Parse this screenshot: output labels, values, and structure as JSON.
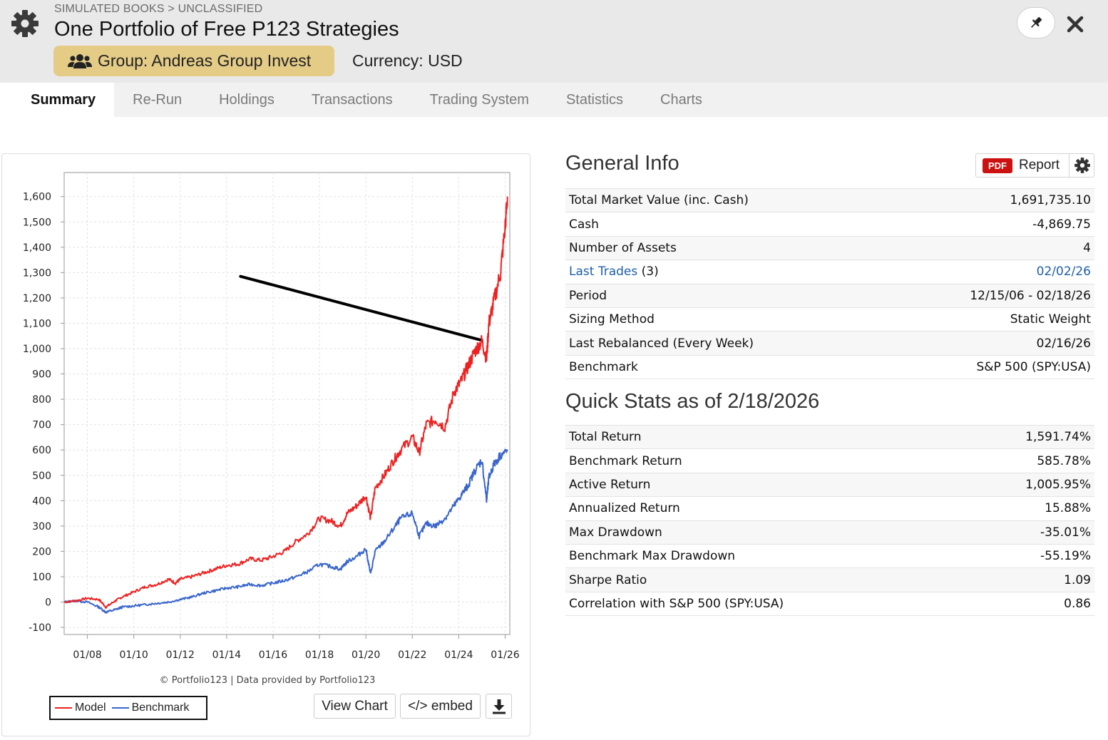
{
  "header": {
    "breadcrumb": "SIMULATED BOOKS > UNCLASSIFIED",
    "title": "One Portfolio of Free P123 Strategies",
    "group": "Group: Andreas Group Invest",
    "currency": "Currency: USD"
  },
  "tabs": [
    {
      "label": "Summary",
      "active": true
    },
    {
      "label": "Re-Run"
    },
    {
      "label": "Holdings"
    },
    {
      "label": "Transactions"
    },
    {
      "label": "Trading System"
    },
    {
      "label": "Statistics"
    },
    {
      "label": "Charts"
    }
  ],
  "chart": {
    "credit": "© Portfolio123 | Data provided by Portfolio123",
    "legend_model": "Model",
    "legend_benchmark": "Benchmark",
    "view_chart": "View Chart",
    "embed": "</> embed",
    "colors": {
      "model": "#ee2222",
      "benchmark": "#3a66cc"
    }
  },
  "chart_data": {
    "type": "line",
    "title": "",
    "xlabel": "",
    "ylabel": "",
    "ylim": [
      -100,
      1650
    ],
    "xlim": [
      2007.0,
      2026.2
    ],
    "yticks": [
      "1,600",
      "1,500",
      "1,400",
      "1,300",
      "1,200",
      "1,100",
      "1,000",
      "900",
      "800",
      "700",
      "600",
      "500",
      "400",
      "300",
      "200",
      "100",
      "0",
      "-100"
    ],
    "ytick_values": [
      1600,
      1500,
      1400,
      1300,
      1200,
      1100,
      1000,
      900,
      800,
      700,
      600,
      500,
      400,
      300,
      200,
      100,
      0,
      -100
    ],
    "xticks": [
      "01/08",
      "01/10",
      "01/12",
      "01/14",
      "01/16",
      "01/18",
      "01/20",
      "01/22",
      "01/24",
      "01/26"
    ],
    "xtick_values": [
      2008,
      2010,
      2012,
      2014,
      2016,
      2018,
      2020,
      2022,
      2024,
      2026
    ],
    "grid": true,
    "series": [
      {
        "name": "Model",
        "x": [
          2007.0,
          2007.5,
          2008.0,
          2008.5,
          2008.8,
          2009.2,
          2009.5,
          2010.0,
          2010.5,
          2011.0,
          2011.5,
          2011.8,
          2012.0,
          2012.5,
          2013.0,
          2013.5,
          2014.0,
          2014.5,
          2015.0,
          2015.5,
          2016.0,
          2016.5,
          2017.0,
          2017.5,
          2018.0,
          2018.5,
          2018.9,
          2019.2,
          2019.6,
          2020.0,
          2020.2,
          2020.4,
          2020.8,
          2021.2,
          2021.5,
          2022.0,
          2022.3,
          2022.6,
          2023.0,
          2023.4,
          2023.8,
          2024.1,
          2024.4,
          2024.7,
          2025.0,
          2025.2,
          2025.3,
          2025.5,
          2025.8,
          2026.0,
          2026.1
        ],
        "values": [
          0,
          5,
          15,
          10,
          -20,
          5,
          20,
          40,
          60,
          70,
          90,
          75,
          90,
          100,
          115,
          130,
          145,
          150,
          170,
          165,
          180,
          200,
          240,
          270,
          330,
          320,
          300,
          350,
          380,
          420,
          330,
          450,
          500,
          560,
          600,
          650,
          590,
          700,
          720,
          690,
          830,
          870,
          930,
          990,
          1030,
          960,
          1100,
          1180,
          1300,
          1480,
          1600
        ]
      },
      {
        "name": "Benchmark",
        "x": [
          2007.0,
          2007.5,
          2008.0,
          2008.5,
          2008.8,
          2009.2,
          2009.5,
          2010.0,
          2010.5,
          2011.0,
          2011.5,
          2012.0,
          2012.5,
          2013.0,
          2013.5,
          2014.0,
          2014.5,
          2015.0,
          2015.5,
          2016.0,
          2016.5,
          2017.0,
          2017.5,
          2018.0,
          2018.5,
          2018.9,
          2019.2,
          2019.6,
          2020.0,
          2020.2,
          2020.4,
          2020.8,
          2021.2,
          2021.5,
          2022.0,
          2022.3,
          2022.6,
          2023.0,
          2023.4,
          2023.8,
          2024.1,
          2024.4,
          2024.7,
          2025.0,
          2025.2,
          2025.3,
          2025.5,
          2025.8,
          2026.1
        ],
        "values": [
          0,
          5,
          0,
          -20,
          -40,
          -30,
          -20,
          -15,
          -10,
          -5,
          0,
          10,
          20,
          35,
          45,
          55,
          60,
          70,
          65,
          75,
          85,
          100,
          120,
          150,
          140,
          130,
          160,
          180,
          210,
          110,
          200,
          240,
          290,
          330,
          350,
          260,
          310,
          300,
          330,
          380,
          420,
          460,
          520,
          560,
          400,
          490,
          540,
          580,
          595
        ]
      }
    ],
    "annotations": [
      {
        "type": "arrow-line",
        "from": [
          2014.6,
          1285
        ],
        "to": [
          2024.9,
          1035
        ]
      }
    ]
  },
  "general_info": {
    "title": "General Info",
    "pdf_tag": "PDF",
    "report_label": "Report",
    "rows": [
      {
        "label": "Total Market Value (inc. Cash)",
        "value": "1,691,735.10"
      },
      {
        "label": "Cash",
        "value": "-4,869.75"
      },
      {
        "label": "Number of Assets",
        "value": "4"
      },
      {
        "label": "Last Trades",
        "label_suffix": "(3)",
        "value": "02/02/26"
      },
      {
        "label": "Period",
        "value": "12/15/06 - 02/18/26"
      },
      {
        "label": "Sizing Method",
        "value": "Static Weight"
      },
      {
        "label": "Last Rebalanced (Every Week)",
        "value": "02/16/26"
      },
      {
        "label": "Benchmark",
        "value": "S&P 500 (SPY:USA)"
      }
    ]
  },
  "quick_stats": {
    "title": "Quick Stats as of 2/18/2026",
    "rows": [
      {
        "label": "Total Return",
        "value": "1,591.74%"
      },
      {
        "label": "Benchmark Return",
        "value": "585.78%"
      },
      {
        "label": "Active Return",
        "value": "1,005.95%"
      },
      {
        "label": "Annualized Return",
        "value": "15.88%"
      },
      {
        "label": "Max Drawdown",
        "value": "-35.01%"
      },
      {
        "label": "Benchmark Max Drawdown",
        "value": "-55.19%"
      },
      {
        "label": "Sharpe Ratio",
        "value": "1.09"
      },
      {
        "label": "Correlation with S&P 500 (SPY:USA)",
        "value": "0.86"
      }
    ]
  }
}
